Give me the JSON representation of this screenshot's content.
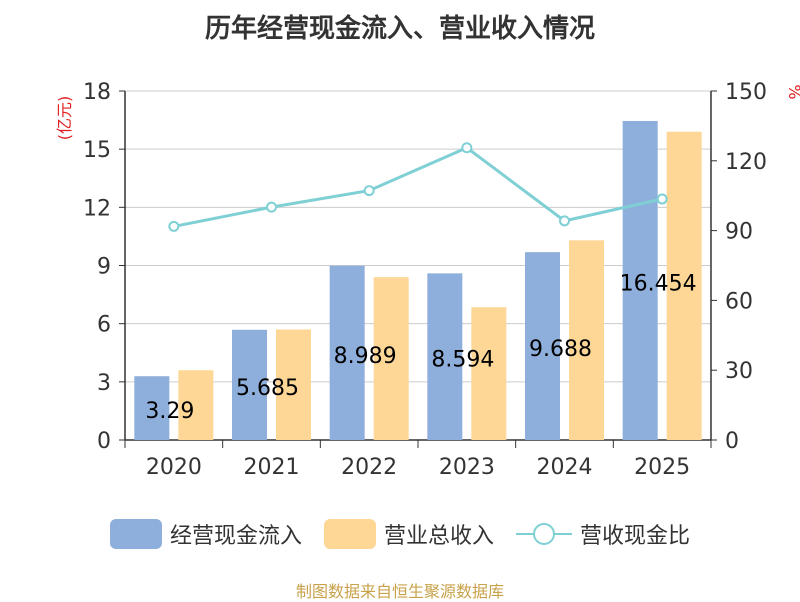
{
  "title": "历年经营现金流入、营业收入情况",
  "source": "制图数据来自恒生聚源数据库",
  "colors": {
    "cash_inflow": "#8eaedb",
    "revenue": "#fed797",
    "ratio": "#7fd0d5",
    "left_unit": "#e02020",
    "right_unit": "#e02020",
    "grid": "#cccccc",
    "axis": "#333333"
  },
  "chart_data": {
    "type": "bar",
    "title": "历年经营现金流入、营业收入情况",
    "categories": [
      "2020",
      "2021",
      "2022",
      "2023",
      "2024",
      "2025"
    ],
    "y_left": {
      "unit_label": "(亿元)",
      "min": 0,
      "max": 18,
      "ticks": [
        0,
        3,
        6,
        9,
        12,
        15,
        18
      ]
    },
    "y_right": {
      "unit_label": "%",
      "min": 0,
      "max": 150,
      "ticks": [
        0,
        30,
        60,
        90,
        120,
        150
      ]
    },
    "grid": true,
    "legend_position": "bottom",
    "series": [
      {
        "name": "经营现金流入",
        "type": "bar",
        "axis": "left",
        "values": [
          3.29,
          5.685,
          8.989,
          8.594,
          9.688,
          16.454
        ],
        "data_labels": [
          "3.29",
          "5.685",
          "8.989",
          "8.594",
          "9.688",
          "16.454"
        ]
      },
      {
        "name": "营业总收入",
        "type": "bar",
        "axis": "left",
        "values": [
          3.6,
          5.7,
          8.4,
          6.85,
          10.3,
          15.9
        ]
      },
      {
        "name": "营收现金比",
        "type": "line",
        "axis": "right",
        "values": [
          91.8,
          100.1,
          107.2,
          125.6,
          94.2,
          103.6
        ]
      }
    ]
  }
}
